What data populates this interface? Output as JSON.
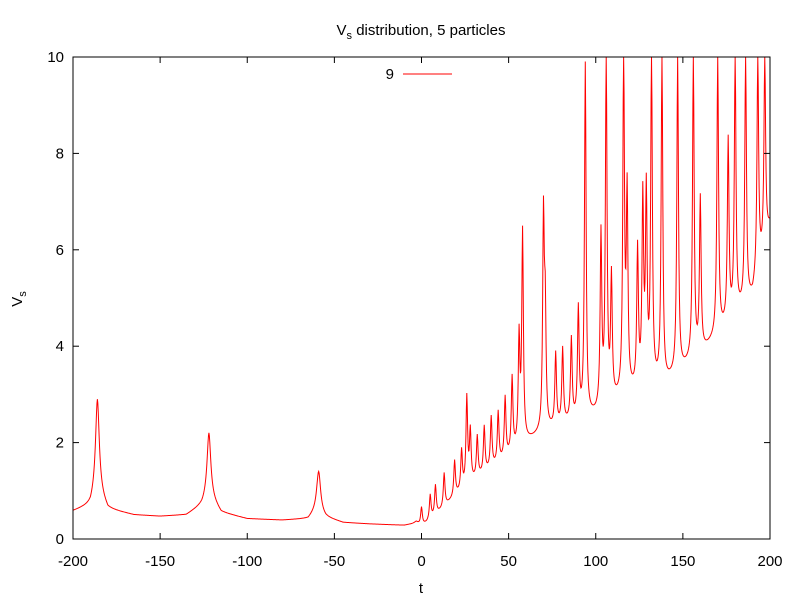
{
  "chart_data": {
    "type": "line",
    "title": "V",
    "title_subscript": "s",
    "title_suffix": " distribution, 5 particles",
    "xlabel": "t",
    "ylabel": "V",
    "ylabel_subscript": "s",
    "xlim": [
      -200,
      200
    ],
    "ylim": [
      0,
      10
    ],
    "xticks": [
      -200,
      -150,
      -100,
      -50,
      0,
      50,
      100,
      150,
      200
    ],
    "yticks": [
      0,
      2,
      4,
      6,
      8,
      10
    ],
    "grid": false,
    "legend": {
      "position": "top-center",
      "entries": [
        "9"
      ]
    },
    "series": [
      {
        "name": "9",
        "color": "#ff0000",
        "baseline": [
          [
            -200,
            0.58
          ],
          [
            -190,
            0.7
          ],
          [
            -186,
            1.0
          ],
          [
            -180,
            0.62
          ],
          [
            -165,
            0.5
          ],
          [
            -150,
            0.47
          ],
          [
            -135,
            0.5
          ],
          [
            -126,
            0.7
          ],
          [
            -122,
            0.9
          ],
          [
            -115,
            0.55
          ],
          [
            -100,
            0.42
          ],
          [
            -80,
            0.39
          ],
          [
            -65,
            0.42
          ],
          [
            -60,
            0.6
          ],
          [
            -55,
            0.45
          ],
          [
            -45,
            0.34
          ],
          [
            -30,
            0.31
          ],
          [
            -10,
            0.28
          ],
          [
            -3,
            0.32
          ],
          [
            0,
            0.27
          ],
          [
            3,
            0.33
          ],
          [
            10,
            0.55
          ],
          [
            20,
            0.9
          ],
          [
            30,
            1.2
          ],
          [
            40,
            1.45
          ],
          [
            50,
            1.7
          ],
          [
            60,
            2.0
          ],
          [
            70,
            2.2
          ],
          [
            80,
            2.35
          ],
          [
            90,
            2.45
          ],
          [
            100,
            2.55
          ],
          [
            110,
            2.8
          ],
          [
            120,
            3.0
          ],
          [
            130,
            3.1
          ],
          [
            140,
            3.2
          ],
          [
            150,
            3.5
          ],
          [
            160,
            3.8
          ],
          [
            170,
            4.2
          ],
          [
            180,
            4.6
          ],
          [
            190,
            5.0
          ],
          [
            200,
            6.5
          ]
        ],
        "peaks": [
          [
            -186,
            2.9
          ],
          [
            -122,
            2.2
          ],
          [
            -59,
            1.4
          ],
          [
            -3,
            0.35
          ],
          [
            0,
            0.65
          ],
          [
            5,
            0.9
          ],
          [
            8,
            1.1
          ],
          [
            13,
            1.35
          ],
          [
            19,
            1.6
          ],
          [
            23,
            1.8
          ],
          [
            26,
            2.9
          ],
          [
            28,
            2.2
          ],
          [
            32,
            2.1
          ],
          [
            36,
            2.3
          ],
          [
            40,
            2.5
          ],
          [
            44,
            2.6
          ],
          [
            48,
            2.9
          ],
          [
            52,
            3.3
          ],
          [
            56,
            4.1
          ],
          [
            58,
            6.3
          ],
          [
            70,
            6.55
          ],
          [
            71,
            4.5
          ],
          [
            77,
            3.8
          ],
          [
            81,
            3.9
          ],
          [
            86,
            4.1
          ],
          [
            90,
            4.7
          ],
          [
            94,
            9.8
          ],
          [
            103,
            6.2
          ],
          [
            106,
            10.0
          ],
          [
            109,
            5.3
          ],
          [
            116,
            10.0
          ],
          [
            118,
            7.0
          ],
          [
            124,
            5.9
          ],
          [
            127,
            6.9
          ],
          [
            129,
            7.0
          ],
          [
            132,
            10.0
          ],
          [
            138,
            10.0
          ],
          [
            147,
            10.0
          ],
          [
            156,
            10.0
          ],
          [
            160,
            7.0
          ],
          [
            170,
            10.0
          ],
          [
            176,
            8.2
          ],
          [
            180,
            10.0
          ],
          [
            186,
            10.0
          ],
          [
            193,
            10.0
          ],
          [
            197,
            10.0
          ]
        ]
      }
    ]
  }
}
